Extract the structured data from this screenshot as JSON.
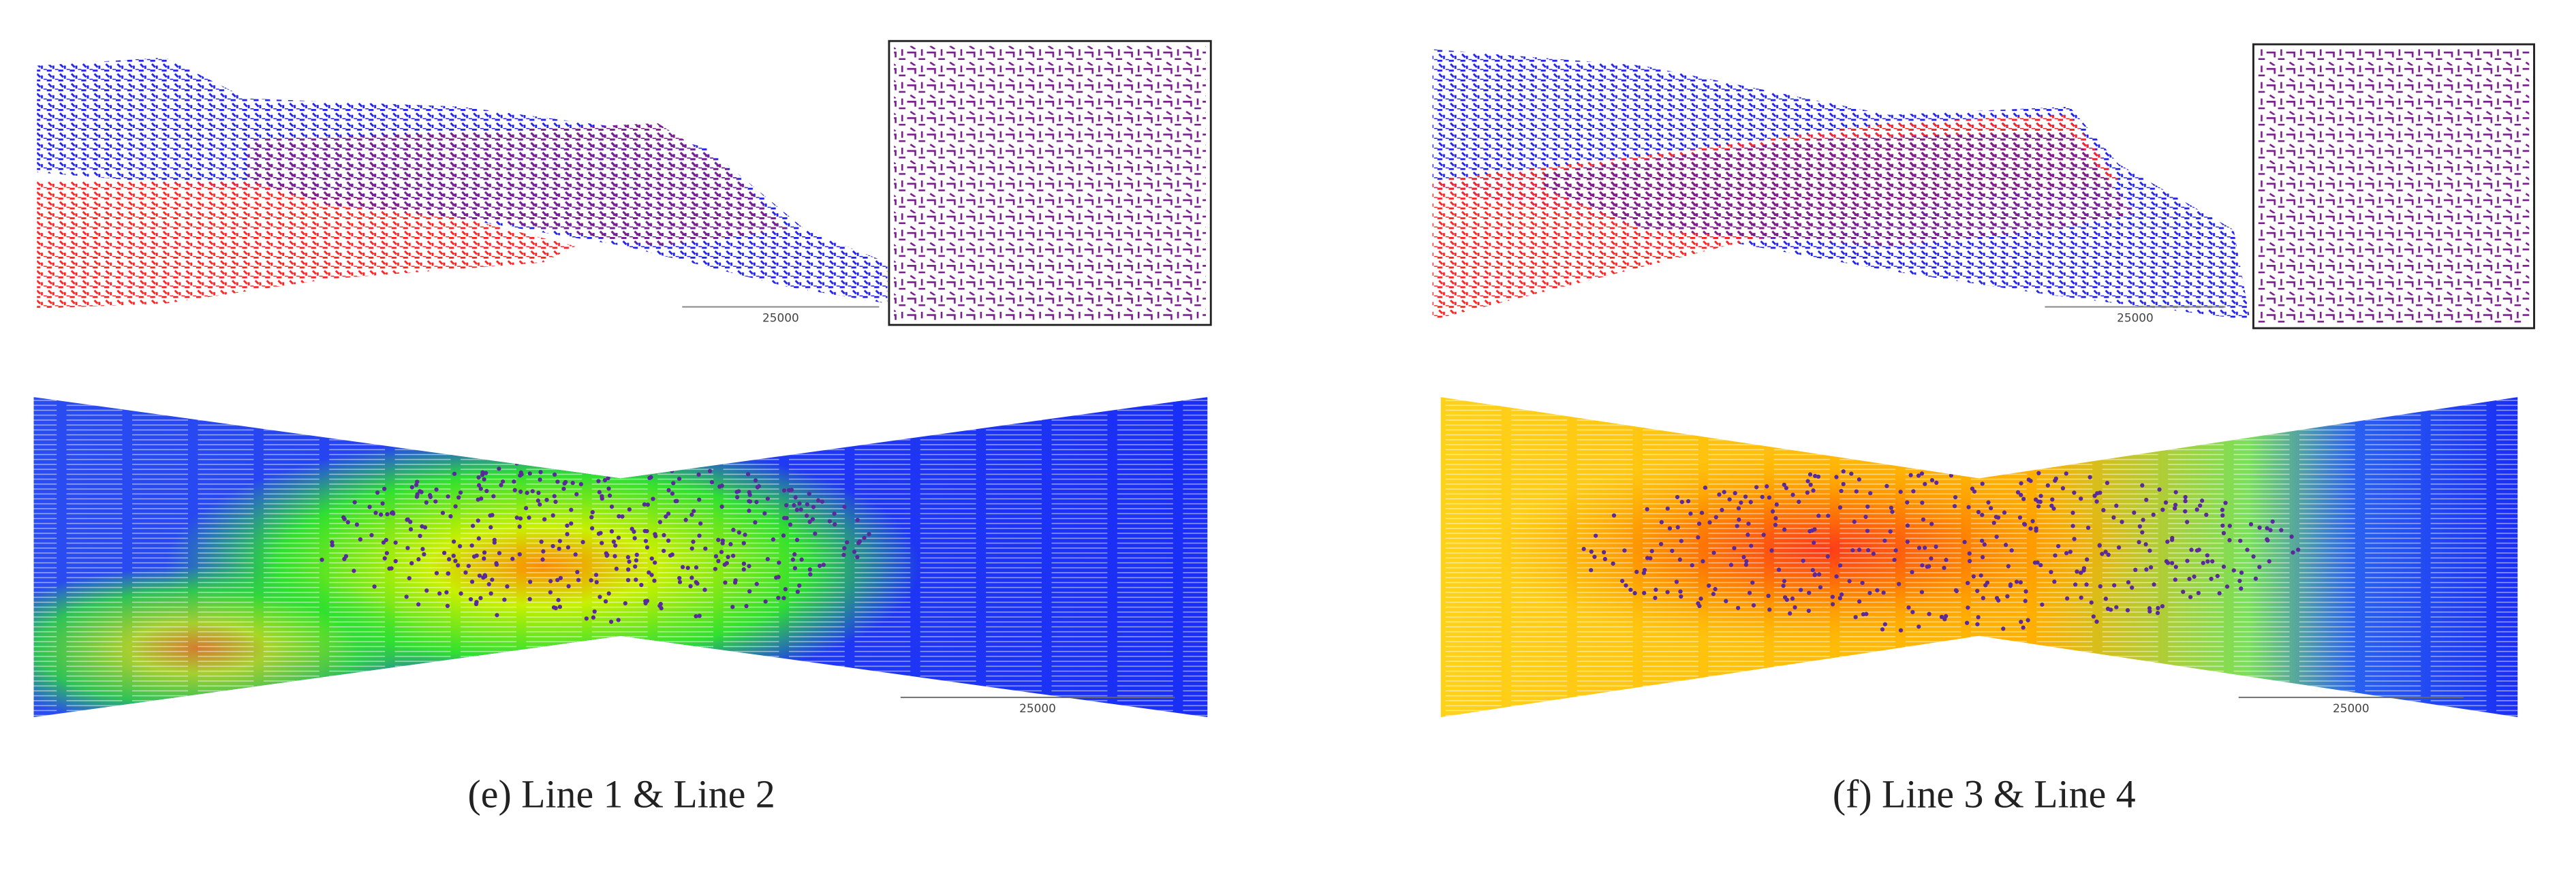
{
  "panels": [
    {
      "caption": "(e) Line 1 & Line 2",
      "scale_top": "25000",
      "scale_bottom": "25000"
    },
    {
      "caption": "(f) Line 3 & Line 4",
      "scale_top": "25000",
      "scale_bottom": "25000"
    }
  ]
}
